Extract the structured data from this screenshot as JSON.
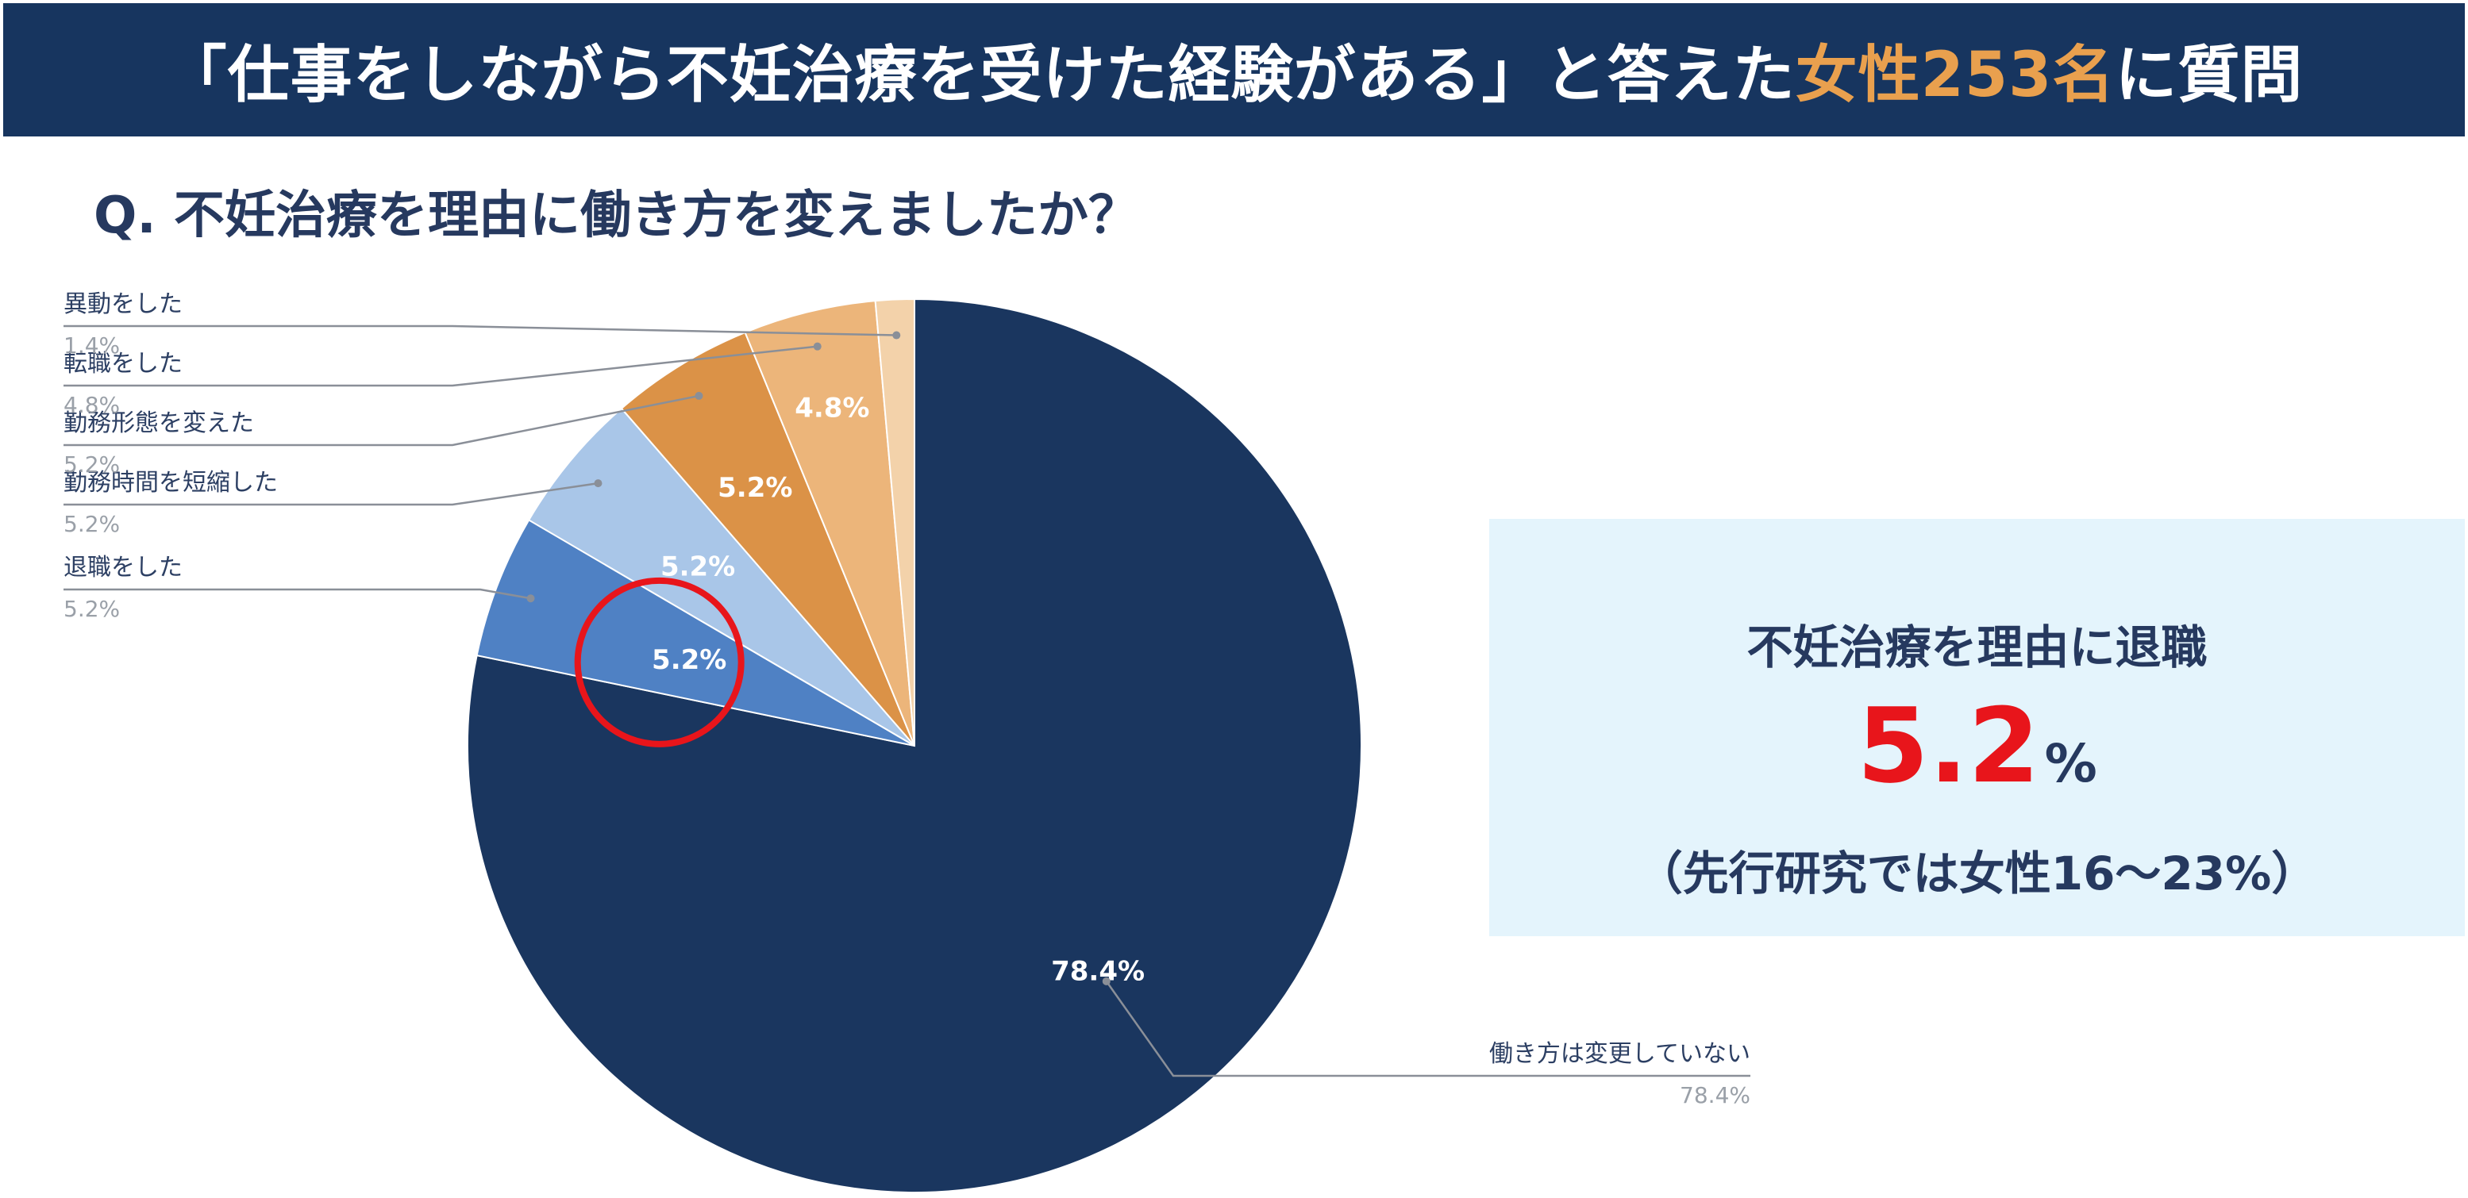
{
  "banner": {
    "title_pre": "「仕事をしながら不妊治療を受けた経験がある」と答えた",
    "title_hl": "女性253名",
    "title_post": "に質問",
    "highlight_color": "#e9a04e"
  },
  "question": "Q. 不妊治療を理由に働き方を変えましたか？",
  "callout": {
    "title": "不妊治療を理由に退職",
    "value": "5.2",
    "unit": "%",
    "note": "（先行研究では女性16〜23%）",
    "value_color": "#e8151b",
    "background": "#e4f4fc"
  },
  "chart_data": {
    "type": "pie",
    "start": "12 o'clock, clockwise",
    "slices": [
      {
        "label": "働き方は変更していない",
        "value": 78.4,
        "display": "78.4%",
        "color": "#1a365f"
      },
      {
        "label": "退職をした",
        "value": 5.2,
        "display": "5.2%",
        "color": "#4f81c4"
      },
      {
        "label": "勤務時間を短縮した",
        "value": 5.2,
        "display": "5.2%",
        "color": "#a9c6e8"
      },
      {
        "label": "勤務形態を変えた",
        "value": 5.2,
        "display": "5.2%",
        "color": "#db9247"
      },
      {
        "label": "転職をした",
        "value": 4.8,
        "display": "4.8%",
        "color": "#ecb57a"
      },
      {
        "label": "異動をした",
        "value": 1.4,
        "display": "1.4%",
        "color": "#f3d2aa"
      }
    ],
    "highlight": {
      "slice": "退職をした",
      "marker": "red-circle",
      "color": "#e8151b"
    }
  }
}
